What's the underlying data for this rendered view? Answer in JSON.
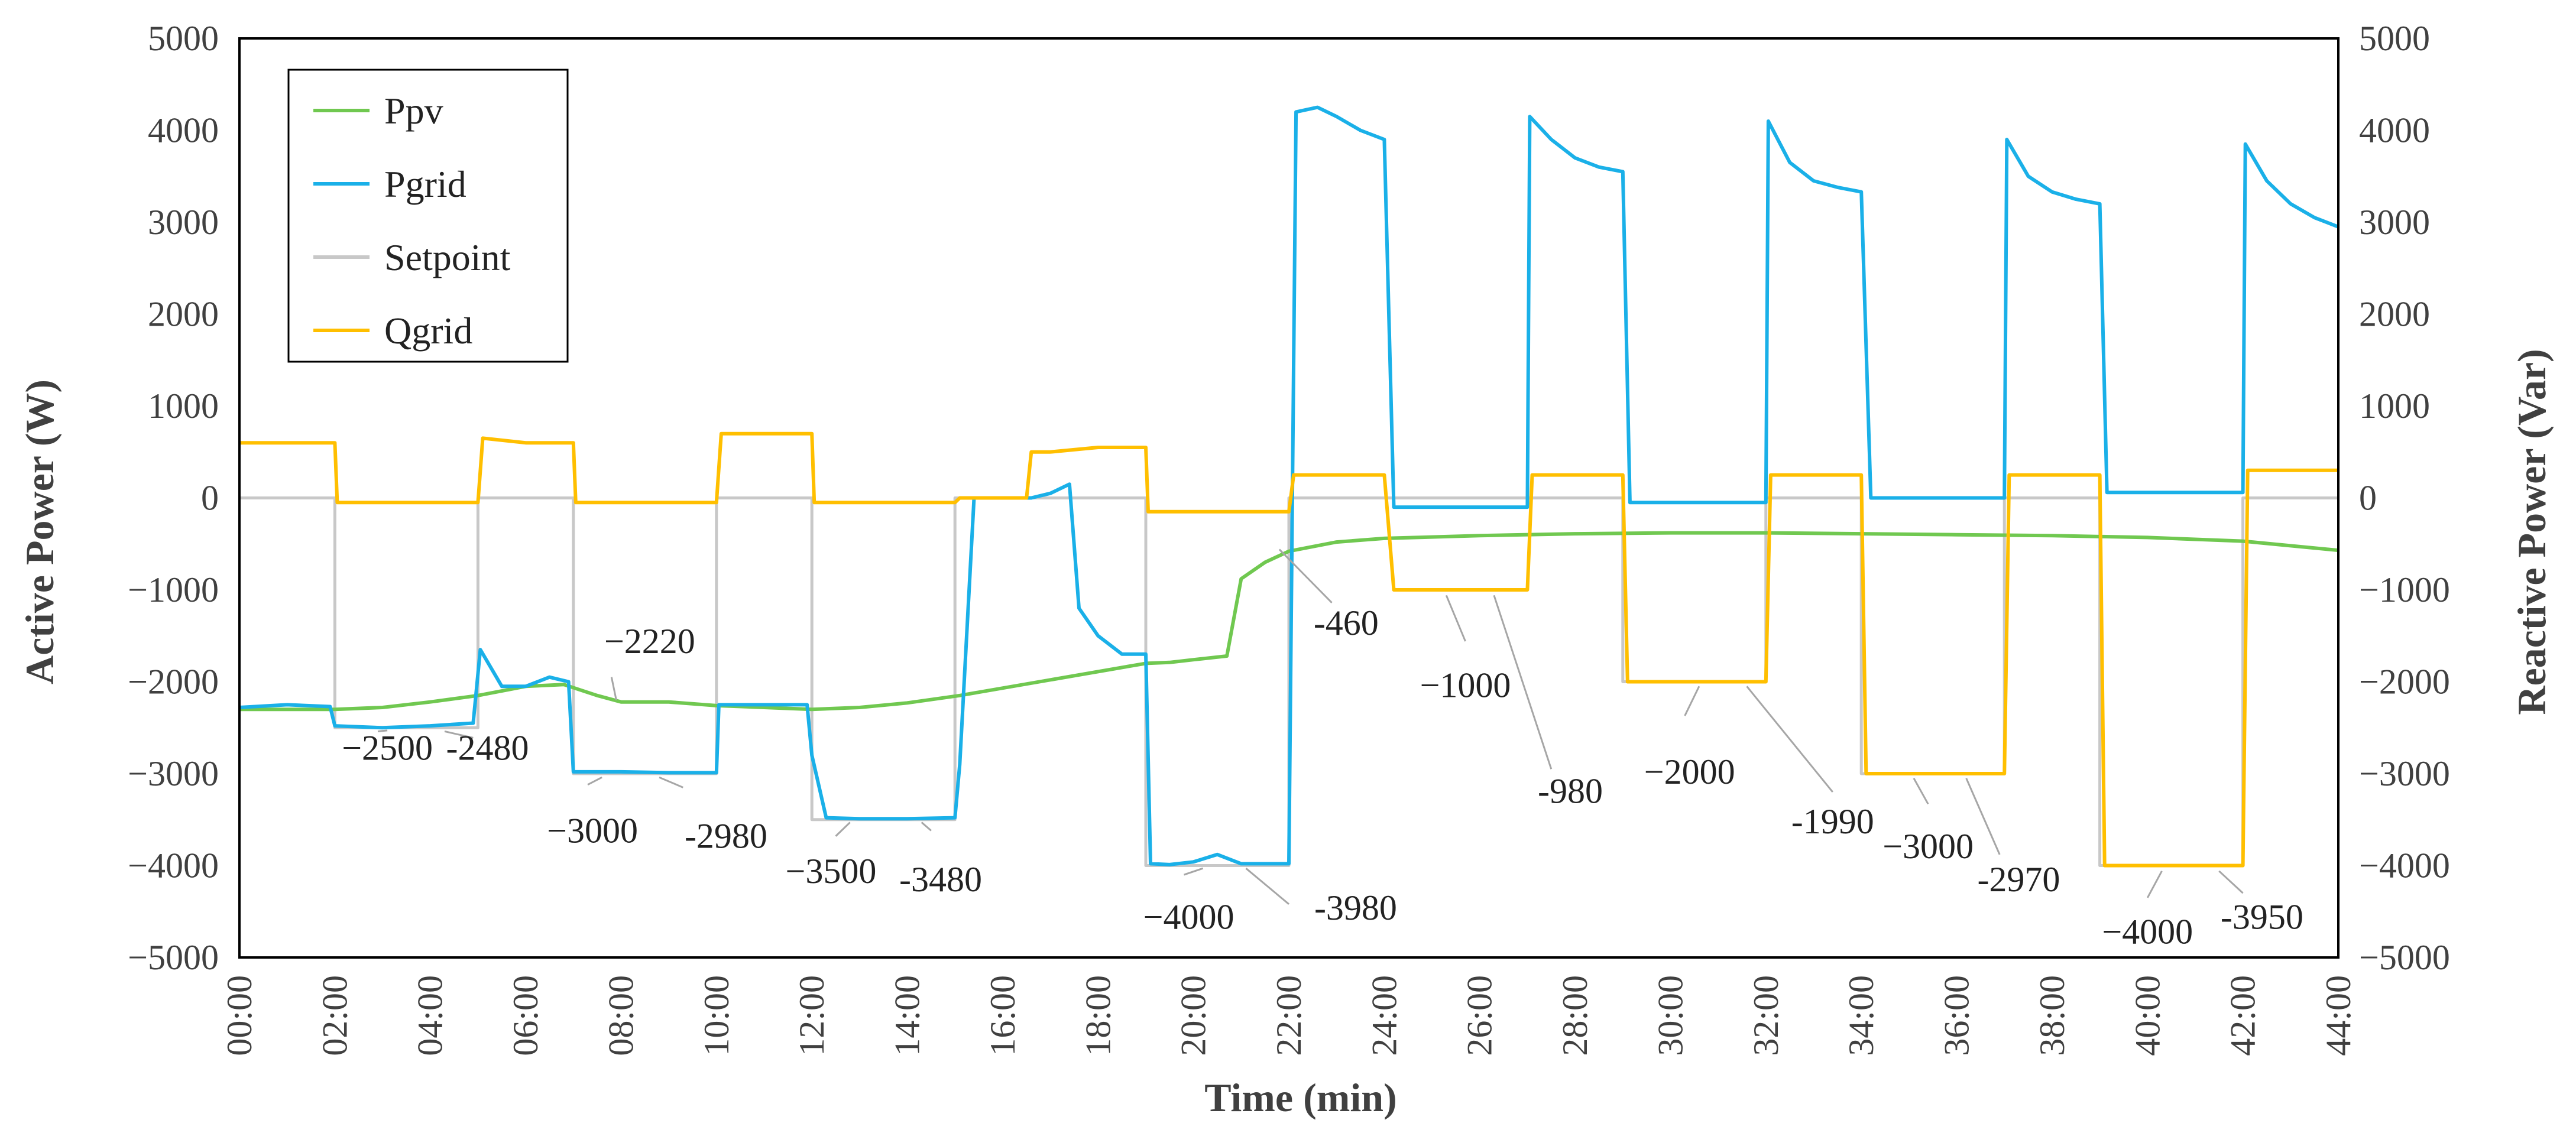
{
  "chart_data": {
    "type": "line",
    "xlabel": "Time (min)",
    "ylabel_left": "Active Power (W)",
    "ylabel_right": "Reactive Power (Var)",
    "xlim": [
      0,
      44
    ],
    "ylim_left": [
      -5000,
      5000
    ],
    "ylim_right": [
      -5000,
      5000
    ],
    "xticks": [
      0,
      2,
      4,
      6,
      8,
      10,
      12,
      14,
      16,
      18,
      20,
      22,
      24,
      26,
      28,
      30,
      32,
      34,
      36,
      38,
      40,
      42,
      44
    ],
    "xtick_labels": [
      "00:00",
      "02:00",
      "04:00",
      "06:00",
      "08:00",
      "10:00",
      "12:00",
      "14:00",
      "16:00",
      "18:00",
      "20:00",
      "22:00",
      "24:00",
      "26:00",
      "28:00",
      "30:00",
      "32:00",
      "34:00",
      "36:00",
      "38:00",
      "40:00",
      "42:00",
      "44:00"
    ],
    "yticks": [
      -5000,
      -4000,
      -3000,
      -2000,
      -1000,
      0,
      1000,
      2000,
      3000,
      4000,
      5000
    ],
    "ytick_labels": [
      "−5000",
      "−4000",
      "−3000",
      "−2000",
      "−1000",
      "0",
      "1000",
      "2000",
      "3000",
      "4000",
      "5000"
    ],
    "grid": false,
    "legend_position": "top-left",
    "series": [
      {
        "name": "Ppv",
        "color": "#70c850",
        "x": [
          0,
          1,
          2,
          3,
          4,
          5,
          6,
          6.8,
          7.5,
          8,
          9,
          10,
          11,
          12,
          13,
          14,
          15.1,
          19,
          19.5,
          20,
          20.7,
          21,
          21.5,
          22,
          23,
          24,
          26,
          28,
          30,
          32,
          34,
          36,
          38,
          40,
          42,
          44
        ],
        "y": [
          -2300,
          -2300,
          -2300,
          -2280,
          -2220,
          -2150,
          -2050,
          -2030,
          -2150,
          -2220,
          -2220,
          -2260,
          -2280,
          -2300,
          -2280,
          -2230,
          -2150,
          -1800,
          -1790,
          -1760,
          -1720,
          -880,
          -700,
          -580,
          -480,
          -440,
          -410,
          -390,
          -380,
          -380,
          -390,
          -400,
          -410,
          -430,
          -470,
          -570
        ]
      },
      {
        "name": "Pgrid",
        "color": "#1ab0e8",
        "x": [
          0,
          1,
          1.9,
          2,
          3,
          4,
          4.9,
          5.05,
          5.5,
          6,
          6.5,
          6.9,
          7,
          8,
          9,
          10,
          10.05,
          10.5,
          11,
          11.9,
          12,
          12.3,
          13,
          14,
          15,
          15.1,
          15.4,
          16.2,
          16.6,
          17,
          17.4,
          17.6,
          18,
          18.5,
          19,
          19.1,
          19.5,
          20,
          20.5,
          21,
          21.5,
          22,
          22.15,
          22.6,
          23,
          23.5,
          24,
          24.2,
          25,
          26,
          27,
          27.05,
          27.5,
          28,
          28.5,
          29,
          29.15,
          30,
          31,
          32,
          32.05,
          32.5,
          33,
          33.5,
          34,
          34.2,
          35,
          36,
          37,
          37.05,
          37.5,
          38,
          38.5,
          39,
          39.15,
          40,
          41,
          42,
          42.05,
          42.5,
          43,
          43.5,
          44
        ],
        "y": [
          -2280,
          -2250,
          -2270,
          -2480,
          -2500,
          -2480,
          -2450,
          -1650,
          -2050,
          -2050,
          -1950,
          -2000,
          -2980,
          -2980,
          -2990,
          -2990,
          -2250,
          -2250,
          -2250,
          -2250,
          -2800,
          -3480,
          -3490,
          -3490,
          -3480,
          -2900,
          0,
          0,
          0,
          50,
          150,
          -1200,
          -1500,
          -1700,
          -1700,
          -3980,
          -3990,
          -3960,
          -3880,
          -3980,
          -3980,
          -3980,
          4200,
          4250,
          4150,
          4000,
          3900,
          -100,
          -100,
          -100,
          -100,
          4150,
          3900,
          3700,
          3600,
          3550,
          -50,
          -50,
          -50,
          -50,
          4100,
          3650,
          3450,
          3380,
          3330,
          0,
          0,
          0,
          0,
          3900,
          3500,
          3330,
          3250,
          3200,
          60,
          60,
          60,
          60,
          3850,
          3450,
          3200,
          3050,
          2950
        ]
      },
      {
        "name": "Setpoint",
        "color": "#c8c8c8",
        "x": [
          0,
          2,
          2,
          5,
          5,
          7,
          7,
          10,
          10,
          12,
          12,
          15,
          15,
          19,
          19,
          22,
          22,
          24.2,
          24.2,
          29,
          29,
          32,
          32,
          34,
          34,
          37,
          37,
          39,
          39,
          42,
          42,
          44
        ],
        "y": [
          0,
          0,
          -2500,
          -2500,
          0,
          0,
          -3000,
          -3000,
          0,
          0,
          -3500,
          -3500,
          0,
          0,
          -4000,
          -4000,
          0,
          0,
          0,
          0,
          -2000,
          -2000,
          0,
          0,
          -3000,
          -3000,
          0,
          0,
          -4000,
          -4000,
          0,
          0
        ]
      },
      {
        "name": "Qgrid",
        "color": "#ffbf00",
        "x": [
          0,
          1,
          2,
          2.05,
          3,
          4,
          5,
          5.1,
          6,
          7,
          7.05,
          8,
          9,
          10,
          10.1,
          11,
          12,
          12.05,
          13,
          14,
          15,
          15.1,
          16,
          16.5,
          16.6,
          17,
          18,
          19,
          19.05,
          20,
          21,
          22,
          22.1,
          23,
          24,
          24.2,
          24.3,
          25,
          26,
          27,
          27.1,
          28,
          29,
          29.1,
          30,
          31,
          32,
          32.1,
          33,
          34,
          34.1,
          35,
          36,
          37,
          37.1,
          38,
          39,
          39.1,
          40,
          41,
          42,
          42.1,
          43,
          44
        ],
        "y": [
          600,
          600,
          600,
          -50,
          -50,
          -50,
          -50,
          650,
          600,
          600,
          -50,
          -50,
          -50,
          -50,
          700,
          700,
          700,
          -50,
          -50,
          -50,
          -50,
          0,
          0,
          0,
          500,
          500,
          550,
          550,
          -150,
          -150,
          -150,
          -150,
          250,
          250,
          250,
          -1000,
          -1000,
          -1000,
          -1000,
          -1000,
          250,
          250,
          250,
          -2000,
          -2000,
          -2000,
          -2000,
          250,
          250,
          250,
          -3000,
          -3000,
          -3000,
          -3000,
          250,
          250,
          250,
          -4000,
          -4000,
          -4000,
          -4000,
          300,
          300,
          300
        ]
      }
    ],
    "annotations": [
      {
        "label": "−2500",
        "x": 3.1,
        "y": -2720
      },
      {
        "label": "-2480",
        "x": 5.2,
        "y": -2720
      },
      {
        "label": "−2220",
        "x": 8.6,
        "y": -1560
      },
      {
        "label": "−3000",
        "x": 7.4,
        "y": -3620
      },
      {
        "label": "-2980",
        "x": 10.2,
        "y": -3680
      },
      {
        "label": "−3500",
        "x": 12.4,
        "y": -4060
      },
      {
        "label": "-3480",
        "x": 14.7,
        "y": -4150
      },
      {
        "label": "−4000",
        "x": 19.9,
        "y": -4560
      },
      {
        "label": "-3980",
        "x": 23.4,
        "y": -4460
      },
      {
        "label": "-460",
        "x": 23.2,
        "y": -1360
      },
      {
        "label": "−1000",
        "x": 25.7,
        "y": -2040
      },
      {
        "label": "-980",
        "x": 27.9,
        "y": -3190
      },
      {
        "label": "−2000",
        "x": 30.4,
        "y": -2980
      },
      {
        "label": "-1990",
        "x": 33.4,
        "y": -3520
      },
      {
        "label": "−3000",
        "x": 35.4,
        "y": -3790
      },
      {
        "label": "-2970",
        "x": 37.3,
        "y": -4150
      },
      {
        "label": "−4000",
        "x": 40.0,
        "y": -4720
      },
      {
        "label": "-3950",
        "x": 42.4,
        "y": -4560
      }
    ],
    "leaders": [
      {
        "from": [
          3.1,
          -2530
        ],
        "to": [
          2.9,
          -2540
        ]
      },
      {
        "from": [
          4.9,
          -2610
        ],
        "to": [
          4.3,
          -2540
        ]
      },
      {
        "from": [
          7.8,
          -1950
        ],
        "to": [
          7.9,
          -2200
        ]
      },
      {
        "from": [
          7.3,
          -3120
        ],
        "to": [
          7.6,
          -3040
        ]
      },
      {
        "from": [
          9.3,
          -3150
        ],
        "to": [
          8.8,
          -3040
        ]
      },
      {
        "from": [
          12.5,
          -3680
        ],
        "to": [
          12.8,
          -3530
        ]
      },
      {
        "from": [
          14.5,
          -3620
        ],
        "to": [
          14.3,
          -3530
        ]
      },
      {
        "from": [
          19.8,
          -4100
        ],
        "to": [
          20.2,
          -4030
        ]
      },
      {
        "from": [
          22.0,
          -4420
        ],
        "to": [
          21.1,
          -4030
        ]
      },
      {
        "from": [
          22.9,
          -1140
        ],
        "to": [
          21.8,
          -560
        ]
      },
      {
        "from": [
          25.7,
          -1560
        ],
        "to": [
          25.3,
          -1060
        ]
      },
      {
        "from": [
          27.5,
          -2950
        ],
        "to": [
          26.3,
          -1060
        ]
      },
      {
        "from": [
          30.3,
          -2370
        ],
        "to": [
          30.6,
          -2050
        ]
      },
      {
        "from": [
          33.4,
          -3200
        ],
        "to": [
          31.6,
          -2050
        ]
      },
      {
        "from": [
          35.4,
          -3330
        ],
        "to": [
          35.1,
          -3050
        ]
      },
      {
        "from": [
          36.9,
          -3880
        ],
        "to": [
          36.2,
          -3050
        ]
      },
      {
        "from": [
          40.0,
          -4350
        ],
        "to": [
          40.3,
          -4060
        ]
      },
      {
        "from": [
          42.0,
          -4300
        ],
        "to": [
          41.5,
          -4060
        ]
      }
    ],
    "legend_frame_color": "#000000",
    "plot_frame_color": "#000000"
  }
}
